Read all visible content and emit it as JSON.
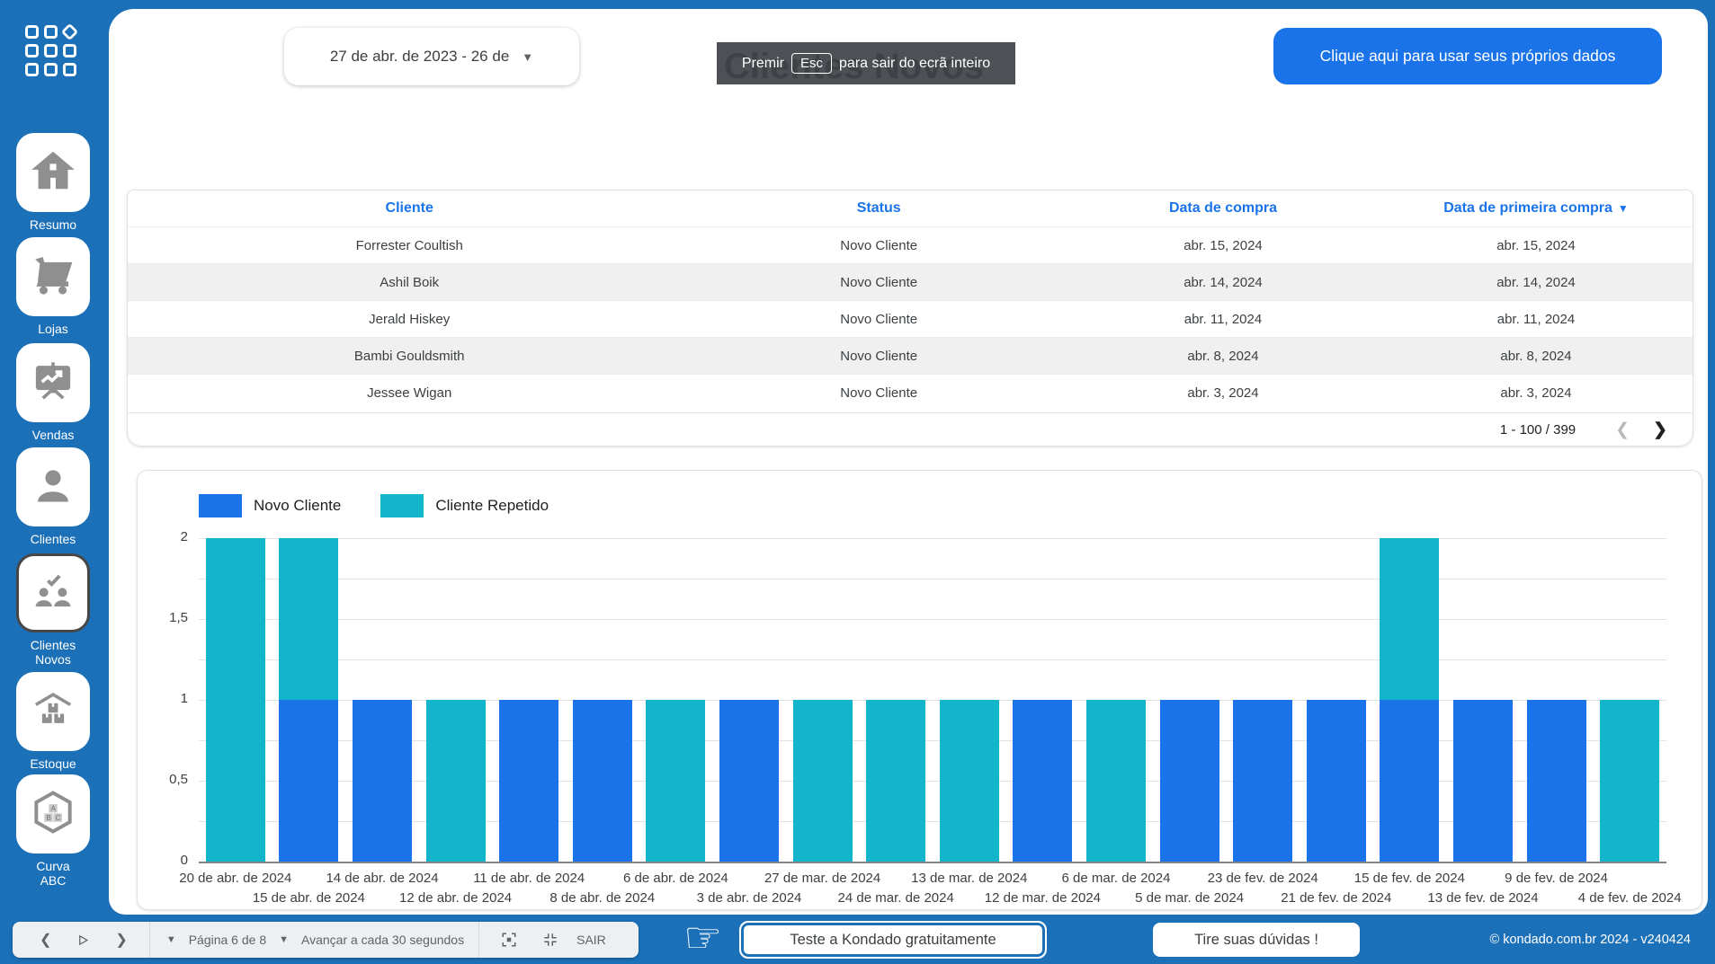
{
  "colors": {
    "frame_blue": "#1b70b8",
    "accent_blue": "#1a73e8",
    "teal": "#12b5cb",
    "zebra_gray": "#f0f0f0",
    "icon_gray": "#8f8f8f"
  },
  "sidebar": {
    "items": [
      {
        "label": "Resumo",
        "icon": "home-icon",
        "selected": false
      },
      {
        "label": "Lojas",
        "icon": "cart-icon",
        "selected": false
      },
      {
        "label": "Vendas",
        "icon": "sales-board-icon",
        "selected": false
      },
      {
        "label": "Clientes",
        "icon": "person-icon",
        "selected": false
      },
      {
        "label": "Clientes\nNovos",
        "icon": "new-customers-icon",
        "selected": true
      },
      {
        "label": "Estoque",
        "icon": "warehouse-icon",
        "selected": false
      },
      {
        "label": "Curva\nABC",
        "icon": "abc-curve-icon",
        "selected": false
      }
    ]
  },
  "header": {
    "date_range": "27 de abr. de 2023 - 26 de",
    "title": "Clientes Novos",
    "cta_button": "Clique aqui para usar seus próprios dados",
    "fullscreen_toast": {
      "prefix": "Premir",
      "key": "Esc",
      "suffix": "para sair do ecrã inteiro"
    }
  },
  "table": {
    "columns": [
      "Cliente",
      "Status",
      "Data de compra",
      "Data de primeira compra"
    ],
    "sorted_column": "Data de primeira compra",
    "sort_direction": "desc",
    "rows": [
      [
        "Forrester Coultish",
        "Novo Cliente",
        "abr. 15, 2024",
        "abr. 15, 2024"
      ],
      [
        "Ashil Boik",
        "Novo Cliente",
        "abr. 14, 2024",
        "abr. 14, 2024"
      ],
      [
        "Jerald Hiskey",
        "Novo Cliente",
        "abr. 11, 2024",
        "abr. 11, 2024"
      ],
      [
        "Bambi Gouldsmith",
        "Novo Cliente",
        "abr. 8, 2024",
        "abr. 8, 2024"
      ],
      [
        "Jessee Wigan",
        "Novo Cliente",
        "abr. 3, 2024",
        "abr. 3, 2024"
      ]
    ],
    "pagination": {
      "label": "1 - 100 / 399"
    }
  },
  "chart_data": {
    "type": "bar",
    "stacked": true,
    "grid": true,
    "legend_position": "top-left",
    "categories": [
      "20 de abr. de 2024",
      "15 de abr. de 2024",
      "14 de abr. de 2024",
      "12 de abr. de 2024",
      "11 de abr. de 2024",
      "8 de abr. de 2024",
      "6 de abr. de 2024",
      "3 de abr. de 2024",
      "27 de mar. de 2024",
      "24 de mar. de 2024",
      "13 de mar. de 2024",
      "12 de mar. de 2024",
      "6 de mar. de 2024",
      "5 de mar. de 2024",
      "23 de fev. de 2024",
      "21 de fev. de 2024",
      "15 de fev. de 2024",
      "13 de fev. de 2024",
      "9 de fev. de 2024",
      "4 de fev. de 2024"
    ],
    "series": [
      {
        "name": "Novo Cliente",
        "color": "#1a73e8",
        "values": [
          0,
          1,
          1,
          0,
          1,
          1,
          0,
          1,
          0,
          0,
          0,
          1,
          0,
          1,
          1,
          1,
          1,
          1,
          1,
          0
        ]
      },
      {
        "name": "Cliente Repetido",
        "color": "#12b5cb",
        "values": [
          2,
          1,
          0,
          1,
          0,
          0,
          1,
          0,
          1,
          1,
          1,
          0,
          1,
          0,
          0,
          0,
          1,
          0,
          0,
          1
        ]
      }
    ],
    "ylim": [
      0,
      2
    ],
    "ytick_labels": [
      "0",
      "0,5",
      "1",
      "1,5",
      "2"
    ],
    "ytick_values": [
      0,
      0.5,
      1,
      1.5,
      2
    ],
    "grid_step": 0.25,
    "xlabel": "",
    "ylabel": "",
    "title": ""
  },
  "footer": {
    "page_label": "Página 6 de 8",
    "autoplay_label": "Avançar a cada 30 segundos",
    "exit_label": "SAIR",
    "promo_button": "Teste a Kondado gratuitamente",
    "help_button": "Tire suas dúvidas !",
    "copyright": "© kondado.com.br 2024 - v240424"
  }
}
